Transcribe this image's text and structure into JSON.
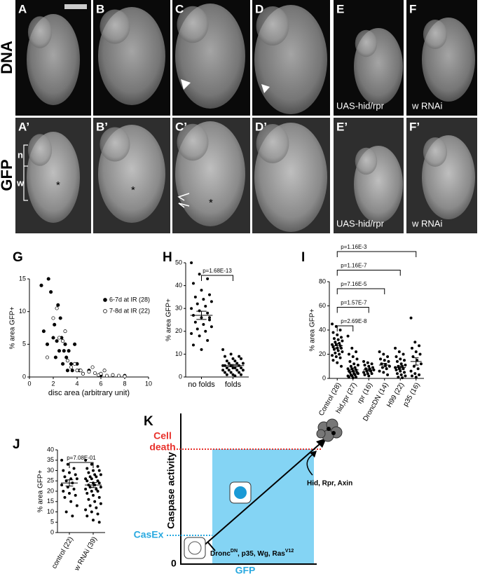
{
  "images": {
    "rows": [
      "DNA",
      "GFP"
    ],
    "panels": [
      [
        "A",
        "B",
        "C",
        "D",
        "E",
        "F"
      ],
      [
        "A’",
        "B’",
        "C’",
        "D’",
        "E’",
        "F’"
      ]
    ],
    "captions": [
      "UAS-hid/rpr",
      "w RNAi",
      "UAS-hid/rpr",
      "w RNAi"
    ],
    "markers": [
      "n",
      "w",
      "*",
      "*",
      "*"
    ]
  },
  "chart_data": [
    {
      "type": "scatter",
      "panel": "G",
      "y_label": "% area GFP+",
      "x_label": "disc area (arbitrary unit)",
      "xlim": [
        0,
        10
      ],
      "xticks": [
        0,
        2,
        4,
        6,
        8,
        10
      ],
      "ylim": [
        0,
        15
      ],
      "yticks": [
        0,
        5,
        10,
        15
      ],
      "legend": "upper right",
      "series": [
        {
          "name": "6-7d at IR (28)",
          "color": "#000000",
          "filled": true,
          "x": [
            1.0,
            1.2,
            1.5,
            1.6,
            1.8,
            2.0,
            2.1,
            2.2,
            2.3,
            2.4,
            2.5,
            2.6,
            2.7,
            2.8,
            2.9,
            3.0,
            3.1,
            3.2,
            3.3,
            3.5,
            3.6,
            3.8,
            4.0,
            4.2,
            4.5,
            5.0,
            6.0,
            8.0
          ],
          "values": [
            14,
            7,
            5,
            15,
            13,
            6,
            8,
            3,
            5.5,
            11,
            4,
            9,
            6,
            2,
            4,
            5,
            3,
            1,
            4,
            2,
            1,
            5,
            2,
            1,
            0.5,
            1,
            0.3,
            0.2
          ]
        },
        {
          "name": "7-8d at IR (22)",
          "color": "#000000",
          "filled": false,
          "x": [
            1.5,
            2.0,
            2.3,
            2.5,
            2.8,
            3.0,
            3.2,
            3.5,
            3.8,
            4.0,
            4.3,
            4.5,
            5.0,
            5.3,
            5.5,
            5.8,
            6.0,
            6.3,
            6.5,
            7.0,
            7.5,
            8.0
          ],
          "values": [
            3,
            9,
            10.5,
            6,
            5.5,
            7,
            2.5,
            1.5,
            2,
            1,
            1,
            0.5,
            0.8,
            1.5,
            0.6,
            0.3,
            0.5,
            1,
            0.2,
            0.3,
            0.2,
            0.1
          ]
        }
      ]
    },
    {
      "type": "dot",
      "panel": "H",
      "y_label": "% area GFP+",
      "ylim": [
        0,
        50
      ],
      "yticks": [
        0,
        10,
        20,
        30,
        40,
        50
      ],
      "categories": [
        "no folds",
        "folds"
      ],
      "annotations": [
        "p=1.68E-13"
      ],
      "values": [
        [
          50,
          45,
          43,
          41,
          38,
          36,
          35,
          34,
          33,
          32,
          31,
          30,
          29,
          28,
          27,
          26,
          25,
          24,
          23,
          22,
          21,
          20,
          19,
          18,
          16,
          14,
          12,
          26
        ],
        [
          12,
          10,
          9,
          9,
          8,
          8,
          7,
          7,
          6,
          6,
          6,
          5,
          5,
          5,
          5,
          4,
          4,
          4,
          4,
          3,
          3,
          3,
          3,
          2,
          2,
          2,
          1,
          1,
          1,
          0.5
        ]
      ],
      "mean": [
        27,
        5
      ],
      "sem": [
        1.8,
        0.5
      ]
    },
    {
      "type": "dot",
      "panel": "I",
      "y_label": "% area GFP+",
      "ylim": [
        0,
        80
      ],
      "yticks": [
        0,
        20,
        40,
        60,
        80
      ],
      "categories": [
        "Control (28)",
        "hid,rpr (27)",
        "rpr (16)",
        "DroncDN (14)",
        "H99 (22)",
        "p35 (16)"
      ],
      "annotations": [
        "p=2.69E-8",
        "p=1.57E-7",
        "p=7.16E-5",
        "p=1.16E-7",
        "p=1.16E-3"
      ],
      "values": [
        [
          45,
          43,
          40,
          38,
          36,
          34,
          33,
          32,
          31,
          30,
          29,
          28,
          28,
          27,
          26,
          25,
          25,
          24,
          23,
          22,
          21,
          20,
          19,
          18,
          17,
          15,
          13,
          10
        ],
        [
          35,
          25,
          22,
          20,
          18,
          16,
          14,
          12,
          11,
          10,
          9,
          8,
          8,
          7,
          6,
          6,
          5,
          5,
          4,
          4,
          3,
          3,
          2,
          2,
          1,
          1,
          0.5
        ],
        [
          14,
          13,
          12,
          11,
          10,
          9,
          8,
          8,
          7,
          6,
          6,
          5,
          4,
          4,
          3,
          2
        ],
        [
          22,
          20,
          18,
          16,
          15,
          14,
          12,
          11,
          10,
          9,
          8,
          6,
          5,
          3
        ],
        [
          25,
          22,
          20,
          18,
          16,
          15,
          14,
          12,
          11,
          10,
          10,
          9,
          8,
          8,
          7,
          6,
          5,
          4,
          3,
          2,
          1,
          0.5
        ],
        [
          50,
          30,
          27,
          25,
          22,
          20,
          18,
          15,
          12,
          10,
          8,
          6,
          4,
          3,
          2,
          1
        ]
      ],
      "mean": [
        27,
        7,
        7,
        11,
        9,
        14
      ],
      "sem": [
        1.8,
        1.5,
        1,
        1.5,
        1.3,
        3
      ]
    },
    {
      "type": "dot",
      "panel": "J",
      "y_label": "% area GFP+",
      "ylim": [
        0,
        40
      ],
      "yticks": [
        0,
        5,
        10,
        15,
        20,
        25,
        30,
        35,
        40
      ],
      "categories": [
        "control (22)",
        "w RNAi (39)"
      ],
      "annotations": [
        "p=7.08E-01"
      ],
      "values": [
        [
          35,
          33,
          31,
          30,
          29,
          28,
          27,
          26,
          26,
          25,
          24,
          23,
          22,
          21,
          20,
          19,
          18,
          17,
          15,
          13,
          10,
          8
        ],
        [
          35,
          33,
          32,
          31,
          30,
          30,
          29,
          28,
          28,
          27,
          27,
          26,
          26,
          25,
          25,
          24,
          24,
          23,
          23,
          22,
          22,
          21,
          21,
          20,
          20,
          19,
          18,
          17,
          16,
          15,
          14,
          13,
          12,
          11,
          10,
          9,
          8,
          6,
          5
        ]
      ],
      "mean": [
        24,
        23
      ],
      "sem": [
        1.5,
        1.2
      ]
    }
  ],
  "diagram": {
    "panel": "K",
    "y_label": "Caspase activity",
    "x_label": "GFP",
    "origin": "0",
    "cell_death": [
      "Cell",
      "death"
    ],
    "casex": "CasEx",
    "activators": "Hid, Rpr, Axin",
    "inhibitors": [
      "Dronc",
      "DN",
      ", p35, Wg, Ras",
      "V12"
    ]
  }
}
